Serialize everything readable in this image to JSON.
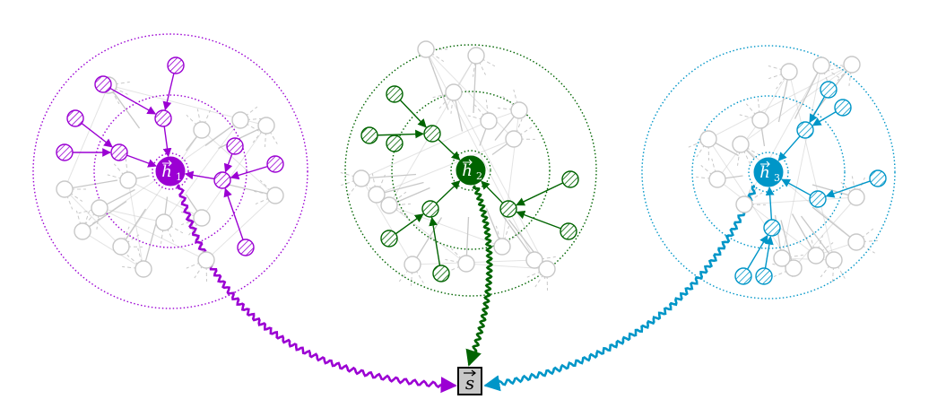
{
  "colors": {
    "purple": "#9b00d3",
    "green": "#006400",
    "cyan": "#0096c8",
    "gray": "#c8c8c8",
    "box_fill": "#c8c8c8",
    "box_stroke": "#000000"
  },
  "graphs": [
    {
      "id": "graph-1",
      "color_key": "purple",
      "center_label": {
        "base": "h",
        "subscript": "1"
      },
      "has_vector_arrow": true
    },
    {
      "id": "graph-2",
      "color_key": "green",
      "center_label": {
        "base": "h",
        "subscript": "2"
      },
      "has_vector_arrow": true
    },
    {
      "id": "graph-3",
      "color_key": "cyan",
      "center_label": {
        "base": "h",
        "subscript": "3"
      },
      "has_vector_arrow": true
    }
  ],
  "output_node": {
    "label": "s",
    "has_vector_arrow": true
  },
  "icons": {
    "graph_node": "hatched-circle-node",
    "aggregation_box": "square-node"
  }
}
